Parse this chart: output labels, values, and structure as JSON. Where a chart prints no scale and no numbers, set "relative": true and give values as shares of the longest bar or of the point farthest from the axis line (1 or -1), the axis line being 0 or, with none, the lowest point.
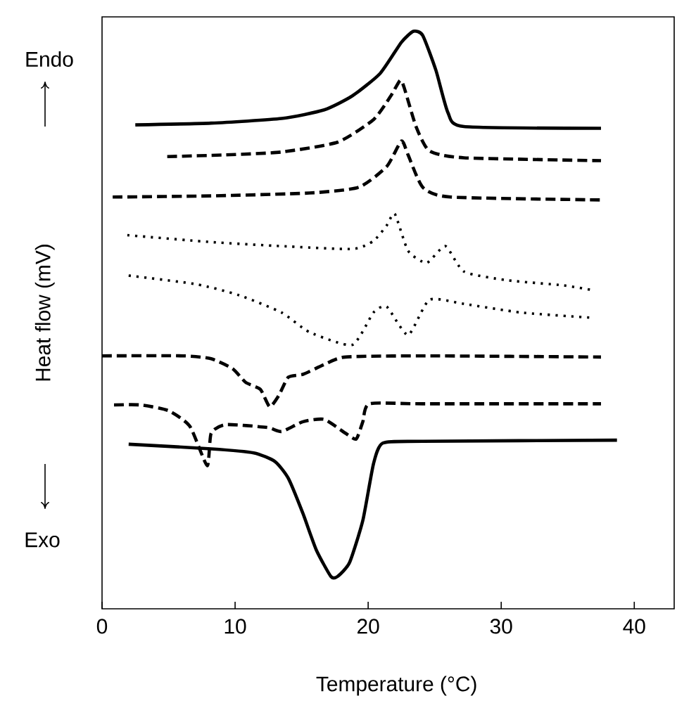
{
  "chart_data": {
    "type": "line",
    "relative": true,
    "xlabel": "Temperature (°C)",
    "ylabel": "Heat flow (mV)",
    "xlim": [
      0,
      43
    ],
    "xticks": [
      0,
      10,
      20,
      30,
      40
    ],
    "tick_labels": "x",
    "annotations": [
      "Endo",
      "Exo"
    ],
    "series": [
      {
        "color": "#000000",
        "line_style": "solid",
        "x": [
          2.5,
          8.2,
          13.5,
          16.7,
          18.8,
          20.9,
          22.5,
          23.4,
          24.1,
          25.1,
          26,
          27.2,
          37.5
        ],
        "values": [
          0.838,
          0.841,
          0.849,
          0.864,
          0.888,
          0.927,
          0.981,
          1,
          0.993,
          0.932,
          0.859,
          0.835,
          0.832
        ]
      },
      {
        "color": "#000000",
        "line_style": "dashed",
        "x": [
          4.9,
          9.3,
          13.5,
          17.7,
          20.4,
          21.7,
          22.4,
          22.7,
          23.6,
          24.6,
          27.2,
          37.5
        ],
        "values": [
          0.783,
          0.786,
          0.791,
          0.808,
          0.847,
          0.888,
          0.915,
          0.903,
          0.835,
          0.793,
          0.781,
          0.776
        ]
      },
      {
        "color": "#000000",
        "line_style": "dashed",
        "x": [
          0.8,
          8.2,
          15.6,
          19.3,
          21.4,
          22.5,
          23,
          24.1,
          26.2,
          37.5
        ],
        "values": [
          0.713,
          0.715,
          0.72,
          0.73,
          0.766,
          0.81,
          0.786,
          0.73,
          0.713,
          0.708
        ]
      },
      {
        "color": "#000000",
        "line_style": "dotted",
        "x": [
          1.9,
          8.2,
          13.5,
          18.8,
          20.4,
          21.4,
          22,
          23,
          24.4,
          25.8,
          27.2,
          30.4,
          34.7,
          36.8
        ],
        "values": [
          0.647,
          0.635,
          0.628,
          0.623,
          0.637,
          0.664,
          0.684,
          0.62,
          0.599,
          0.628,
          0.584,
          0.569,
          0.56,
          0.552
        ]
      },
      {
        "color": "#000000",
        "line_style": "dotted",
        "x": [
          2,
          7.1,
          10.3,
          13.5,
          15.6,
          18.8,
          20.4,
          21.4,
          23,
          24.6,
          27.2,
          31.5,
          36.8
        ],
        "values": [
          0.577,
          0.562,
          0.543,
          0.513,
          0.479,
          0.457,
          0.513,
          0.523,
          0.474,
          0.535,
          0.528,
          0.513,
          0.504
        ]
      },
      {
        "color": "#000000",
        "line_style": "dashed",
        "x": [
          0,
          6.1,
          8.2,
          9.8,
          10.8,
          11.9,
          12.6,
          13.3,
          14,
          15.1,
          16.7,
          18.3,
          24.1,
          37.5
        ],
        "values": [
          0.438,
          0.438,
          0.433,
          0.416,
          0.392,
          0.38,
          0.35,
          0.37,
          0.401,
          0.406,
          0.423,
          0.436,
          0.438,
          0.436
        ]
      },
      {
        "color": "#000000",
        "line_style": "dashed",
        "x": [
          0.9,
          2.9,
          5,
          6.6,
          7.9,
          8.2,
          9.3,
          12.4,
          13.5,
          15.1,
          16.7,
          18.3,
          19.1,
          19.6,
          20.1,
          24.1,
          37.5
        ],
        "values": [
          0.353,
          0.353,
          0.343,
          0.316,
          0.248,
          0.304,
          0.319,
          0.314,
          0.307,
          0.324,
          0.328,
          0.304,
          0.294,
          0.324,
          0.355,
          0.355,
          0.355
        ]
      },
      {
        "color": "#000000",
        "line_style": "solid",
        "x": [
          2,
          8.2,
          11.4,
          13,
          14,
          15.1,
          16.1,
          17.2,
          17.7,
          18.6,
          19.6,
          20.4,
          21.1,
          24.1,
          38.7
        ],
        "values": [
          0.285,
          0.277,
          0.27,
          0.255,
          0.226,
          0.165,
          0.102,
          0.056,
          0.056,
          0.08,
          0.153,
          0.251,
          0.287,
          0.29,
          0.292
        ]
      }
    ]
  }
}
